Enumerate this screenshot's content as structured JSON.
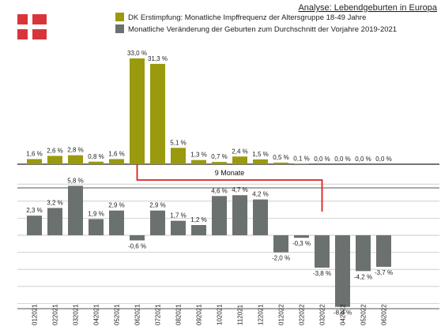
{
  "header": {
    "title": "Analyse: Lebendgeburten in Europa"
  },
  "colors": {
    "upper": "#9a9a0e",
    "lower": "#6b716e",
    "connector": "#dd1f1f",
    "flag_red": "#d8353a",
    "grid": "#c8c8c8"
  },
  "icons": {
    "flag": "denmark-flag"
  },
  "chart_data": [
    {
      "type": "bar",
      "series": [
        {
          "name": "DK Erstimpfung: Monatliche Impffrequenz der Altersgruppe 18-49 Jahre",
          "values": [
            1.6,
            2.6,
            2.8,
            0.8,
            1.6,
            33.0,
            31.3,
            5.1,
            1.3,
            0.7,
            2.4,
            1.5,
            0.5,
            0.1,
            0.0,
            0.0,
            0.0,
            0.0
          ],
          "labels": [
            "1,6 %",
            "2,6 %",
            "2,8 %",
            "0,8 %",
            "1,6 %",
            "33,0 %",
            "31,3 %",
            "5,1 %",
            "1,3 %",
            "0,7 %",
            "2,4 %",
            "1,5 %",
            "0,5 %",
            "0,1 %",
            "0,0 %",
            "0,0 %",
            "0,0 %",
            "0,0 %"
          ]
        }
      ],
      "ylim": [
        0,
        34
      ],
      "grid": false,
      "legend": "top"
    },
    {
      "type": "bar",
      "categories": [
        "012021",
        "022021",
        "032021",
        "042021",
        "052021",
        "062021",
        "072021",
        "082021",
        "092021",
        "102021",
        "112021",
        "122021",
        "012022",
        "022022",
        "032022",
        "042022",
        "052022",
        "062022"
      ],
      "series": [
        {
          "name": "Monatliche Veränderung der Geburten zum Durchschnitt der Vorjahre 2019-2021",
          "values": [
            2.3,
            3.2,
            5.8,
            1.9,
            2.9,
            -0.6,
            2.9,
            1.7,
            1.2,
            4.6,
            4.7,
            4.2,
            -2.0,
            -0.3,
            -3.8,
            -8.4,
            -4.2,
            -3.7
          ],
          "labels": [
            "2,3 %",
            "3,2 %",
            "5,8 %",
            "1,9 %",
            "2,9 %",
            "-0,6 %",
            "2,9 %",
            "1,7 %",
            "1,2 %",
            "4,6 %",
            "4,7 %",
            "4,2 %",
            "-2,0 %",
            "-0,3 %",
            "-3,8 %",
            "-8,4 %",
            "-4,2 %",
            "-3,7 %"
          ]
        }
      ],
      "ylim": [
        -9,
        6.5
      ],
      "grid": true,
      "legend": "top"
    }
  ],
  "annotation": {
    "label": "9 Monate",
    "from_category": "062021",
    "to_category": "032022"
  }
}
